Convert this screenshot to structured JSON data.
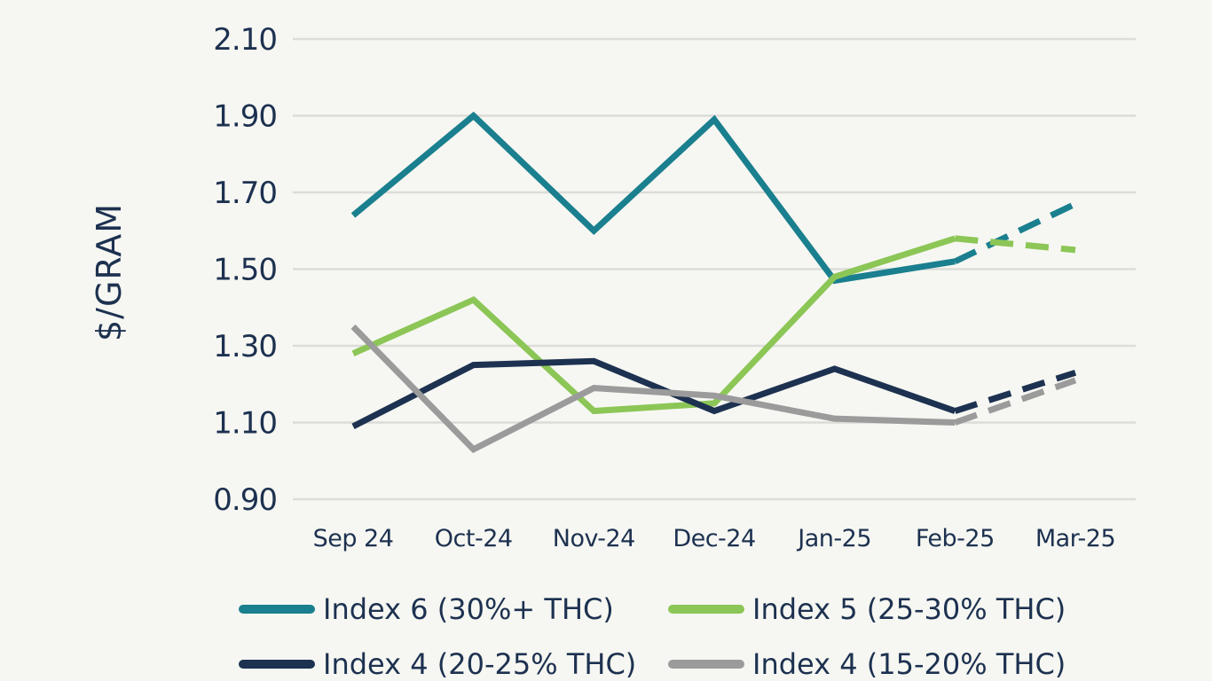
{
  "chart_data": {
    "type": "line",
    "title": "",
    "xlabel": "",
    "ylabel": "$/GRAM",
    "ylim": [
      0.9,
      2.1
    ],
    "yticks": [
      "2.10",
      "1.90",
      "1.70",
      "1.50",
      "1.30",
      "1.10",
      "0.90"
    ],
    "categories": [
      "Sep 24",
      "Oct-24",
      "Nov-24",
      "Dec-24",
      "Jan-25",
      "Feb-25",
      "Mar-25"
    ],
    "projection_from_index": 5,
    "grid": true,
    "legend_position": "bottom",
    "series": [
      {
        "name": "Index 6 (30%+ THC)",
        "color": "#1a7f8e",
        "values": [
          1.64,
          1.9,
          1.6,
          1.89,
          1.47,
          1.52,
          1.67
        ]
      },
      {
        "name": "Index 5 (25-30% THC)",
        "color": "#8cc656",
        "values": [
          1.28,
          1.42,
          1.13,
          1.15,
          1.48,
          1.58,
          1.55
        ]
      },
      {
        "name": "Index 4 (20-25% THC)",
        "color": "#1d3150",
        "values": [
          1.09,
          1.25,
          1.26,
          1.13,
          1.24,
          1.13,
          1.23
        ]
      },
      {
        "name": "Index 4 (15-20% THC)",
        "color": "#9b9b9b",
        "values": [
          1.35,
          1.03,
          1.19,
          1.17,
          1.11,
          1.1,
          1.21
        ]
      }
    ]
  }
}
